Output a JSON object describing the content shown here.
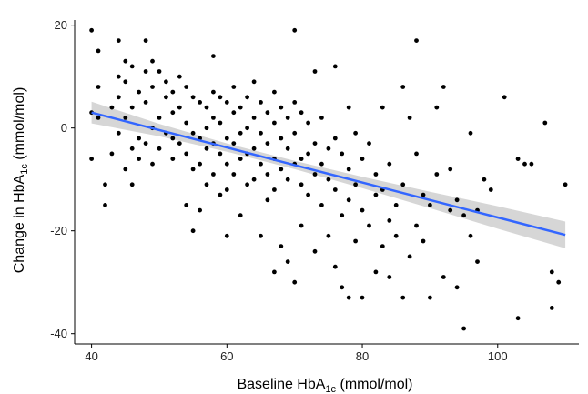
{
  "chart_data": {
    "type": "scatter",
    "title": "",
    "xlabel": {
      "prefix": "Baseline HbA",
      "sub": "1c",
      "suffix": " (mmol/mol)"
    },
    "ylabel": {
      "prefix": "Change in HbA",
      "sub": "1c",
      "suffix": " (mmol/mol)"
    },
    "xlim": [
      37.5,
      112
    ],
    "ylim": [
      -42,
      21
    ],
    "x_ticks": [
      40,
      60,
      80,
      100
    ],
    "y_ticks": [
      -40,
      -20,
      0,
      20
    ],
    "grid": false,
    "point_color": "#000000",
    "fit_color": "#3366ff",
    "band_color": "#c8c8c8",
    "fit": {
      "x": [
        40,
        50,
        60,
        70,
        80,
        90,
        100,
        110
      ],
      "y": [
        3.0,
        -0.4,
        -3.8,
        -7.2,
        -10.6,
        -14.0,
        -17.4,
        -20.8
      ],
      "lower": [
        0.9,
        -1.6,
        -4.6,
        -8.0,
        -11.7,
        -15.6,
        -19.6,
        -23.4
      ],
      "upper": [
        5.1,
        0.8,
        -3.0,
        -6.4,
        -9.5,
        -12.4,
        -15.2,
        -18.2
      ]
    },
    "points": [
      [
        40,
        19
      ],
      [
        40,
        3
      ],
      [
        40,
        -6
      ],
      [
        41,
        15
      ],
      [
        41,
        8
      ],
      [
        41,
        2
      ],
      [
        42,
        -11
      ],
      [
        42,
        -15
      ],
      [
        43,
        4
      ],
      [
        43,
        -5
      ],
      [
        44,
        17
      ],
      [
        44,
        10
      ],
      [
        44,
        6
      ],
      [
        44,
        -1
      ],
      [
        45,
        13
      ],
      [
        45,
        9
      ],
      [
        45,
        2
      ],
      [
        45,
        -8
      ],
      [
        46,
        12
      ],
      [
        46,
        4
      ],
      [
        46,
        -4
      ],
      [
        46,
        -11
      ],
      [
        47,
        7
      ],
      [
        47,
        -2
      ],
      [
        47,
        -6
      ],
      [
        48,
        17
      ],
      [
        48,
        11
      ],
      [
        48,
        5
      ],
      [
        48,
        -3
      ],
      [
        49,
        13
      ],
      [
        49,
        8
      ],
      [
        49,
        0
      ],
      [
        49,
        -7
      ],
      [
        50,
        11
      ],
      [
        50,
        2
      ],
      [
        50,
        -4
      ],
      [
        51,
        9
      ],
      [
        51,
        6
      ],
      [
        51,
        -1
      ],
      [
        52,
        7
      ],
      [
        52,
        3
      ],
      [
        52,
        -2
      ],
      [
        52,
        -6
      ],
      [
        53,
        10
      ],
      [
        53,
        4
      ],
      [
        53,
        -3
      ],
      [
        54,
        8
      ],
      [
        54,
        1
      ],
      [
        54,
        -5
      ],
      [
        54,
        -15
      ],
      [
        55,
        6
      ],
      [
        55,
        -1
      ],
      [
        55,
        -8
      ],
      [
        55,
        -20
      ],
      [
        56,
        5
      ],
      [
        56,
        -2
      ],
      [
        56,
        -7
      ],
      [
        56,
        -16
      ],
      [
        57,
        4
      ],
      [
        57,
        0
      ],
      [
        57,
        -4
      ],
      [
        57,
        -11
      ],
      [
        58,
        14
      ],
      [
        58,
        7
      ],
      [
        58,
        2
      ],
      [
        58,
        -3
      ],
      [
        58,
        -9
      ],
      [
        59,
        6
      ],
      [
        59,
        1
      ],
      [
        59,
        -5
      ],
      [
        59,
        -13
      ],
      [
        60,
        5
      ],
      [
        60,
        -2
      ],
      [
        60,
        -7
      ],
      [
        60,
        -12
      ],
      [
        60,
        -21
      ],
      [
        61,
        8
      ],
      [
        61,
        3
      ],
      [
        61,
        -3
      ],
      [
        61,
        -9
      ],
      [
        62,
        4
      ],
      [
        62,
        -1
      ],
      [
        62,
        -6
      ],
      [
        62,
        -17
      ],
      [
        63,
        6
      ],
      [
        63,
        0
      ],
      [
        63,
        -5
      ],
      [
        63,
        -11
      ],
      [
        64,
        9
      ],
      [
        64,
        2
      ],
      [
        64,
        -4
      ],
      [
        64,
        -10
      ],
      [
        65,
        5
      ],
      [
        65,
        -1
      ],
      [
        65,
        -7
      ],
      [
        65,
        -21
      ],
      [
        66,
        3
      ],
      [
        66,
        -3
      ],
      [
        66,
        -9
      ],
      [
        66,
        -14
      ],
      [
        67,
        7
      ],
      [
        67,
        1
      ],
      [
        67,
        -6
      ],
      [
        67,
        -12
      ],
      [
        67,
        -28
      ],
      [
        68,
        4
      ],
      [
        68,
        -2
      ],
      [
        68,
        -8
      ],
      [
        68,
        -23
      ],
      [
        69,
        2
      ],
      [
        69,
        -4
      ],
      [
        69,
        -10
      ],
      [
        69,
        -26
      ],
      [
        70,
        19
      ],
      [
        70,
        5
      ],
      [
        70,
        -1
      ],
      [
        70,
        -7
      ],
      [
        70,
        -30
      ],
      [
        71,
        3
      ],
      [
        71,
        -6
      ],
      [
        71,
        -11
      ],
      [
        71,
        -19
      ],
      [
        72,
        1
      ],
      [
        72,
        -5
      ],
      [
        72,
        -13
      ],
      [
        73,
        11
      ],
      [
        73,
        -3
      ],
      [
        73,
        -9
      ],
      [
        73,
        -24
      ],
      [
        74,
        2
      ],
      [
        74,
        -7
      ],
      [
        74,
        -15
      ],
      [
        75,
        -4
      ],
      [
        75,
        -10
      ],
      [
        75,
        -21
      ],
      [
        76,
        12
      ],
      [
        76,
        -2
      ],
      [
        76,
        -12
      ],
      [
        76,
        -27
      ],
      [
        77,
        -5
      ],
      [
        77,
        -17
      ],
      [
        77,
        -31
      ],
      [
        78,
        4
      ],
      [
        78,
        -8
      ],
      [
        78,
        -14
      ],
      [
        78,
        -33
      ],
      [
        79,
        -1
      ],
      [
        79,
        -11
      ],
      [
        79,
        -22
      ],
      [
        80,
        -6
      ],
      [
        80,
        -16
      ],
      [
        80,
        -33
      ],
      [
        81,
        -3
      ],
      [
        81,
        -19
      ],
      [
        82,
        -9
      ],
      [
        82,
        -13
      ],
      [
        82,
        -28
      ],
      [
        83,
        4
      ],
      [
        83,
        -12
      ],
      [
        83,
        -23
      ],
      [
        84,
        -7
      ],
      [
        84,
        -18
      ],
      [
        84,
        -29
      ],
      [
        85,
        -15
      ],
      [
        85,
        -21
      ],
      [
        86,
        8
      ],
      [
        86,
        -11
      ],
      [
        86,
        -33
      ],
      [
        87,
        2
      ],
      [
        87,
        -25
      ],
      [
        88,
        17
      ],
      [
        88,
        -5
      ],
      [
        88,
        -19
      ],
      [
        89,
        -13
      ],
      [
        89,
        -22
      ],
      [
        90,
        -15
      ],
      [
        90,
        -33
      ],
      [
        91,
        4
      ],
      [
        91,
        -9
      ],
      [
        92,
        8
      ],
      [
        92,
        -29
      ],
      [
        93,
        -8
      ],
      [
        93,
        -16
      ],
      [
        94,
        -14
      ],
      [
        94,
        -31
      ],
      [
        95,
        -17
      ],
      [
        95,
        -39
      ],
      [
        96,
        -1
      ],
      [
        96,
        -21
      ],
      [
        97,
        -16
      ],
      [
        97,
        -26
      ],
      [
        98,
        -10
      ],
      [
        99,
        -12
      ],
      [
        101,
        6
      ],
      [
        103,
        -6
      ],
      [
        103,
        -37
      ],
      [
        104,
        -7
      ],
      [
        105,
        -7
      ],
      [
        107,
        1
      ],
      [
        108,
        -28
      ],
      [
        108,
        -35
      ],
      [
        109,
        -30
      ],
      [
        110,
        -11
      ]
    ]
  }
}
